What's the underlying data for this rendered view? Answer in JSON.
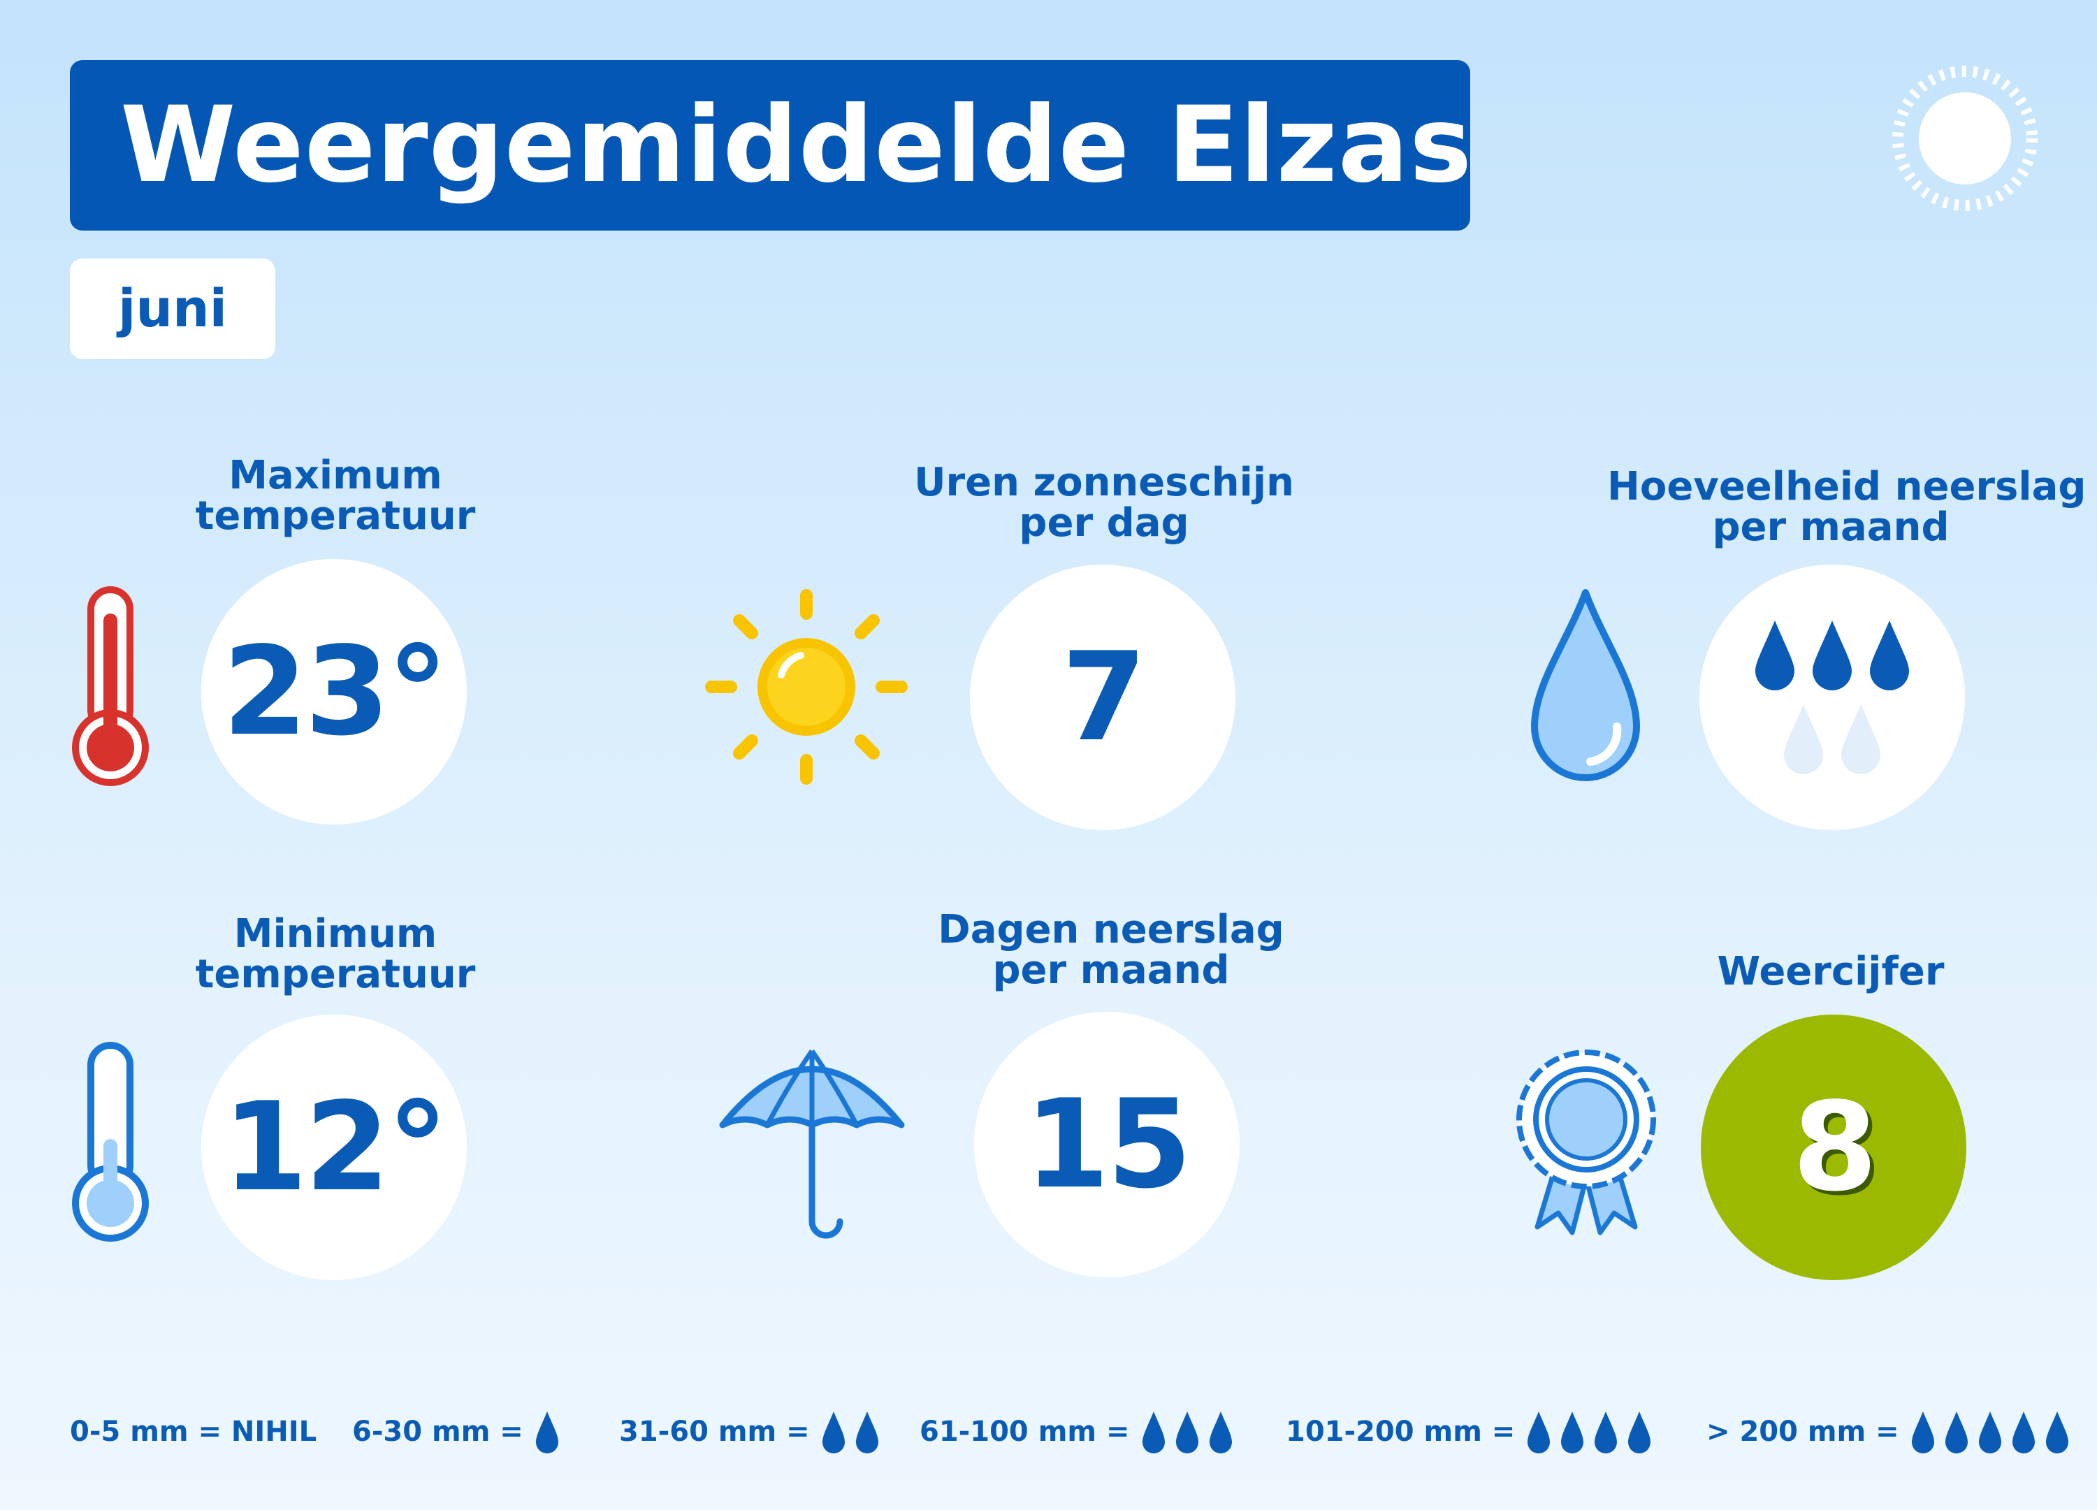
{
  "title": "Weergemiddelde Elzas",
  "month": "juni",
  "stats": {
    "max_temp": {
      "label_line1": "Maximum",
      "label_line2": "temperatuur",
      "value": "23°",
      "icon": "thermometer-hot-icon"
    },
    "min_temp": {
      "label_line1": "Minimum",
      "label_line2": "temperatuur",
      "value": "12°",
      "icon": "thermometer-cold-icon"
    },
    "sun_hours": {
      "label_line1": "Uren zonneschijn",
      "label_line2": "per dag",
      "value": "7",
      "icon": "sun-icon"
    },
    "rain_days": {
      "label_line1": "Dagen neerslag",
      "label_line2": "per maand",
      "value": "15",
      "icon": "umbrella-icon"
    },
    "precip_amount": {
      "label_line1": "Hoeveelheid neerslag",
      "label_line2": "per maand",
      "drops_filled": 3,
      "drops_total": 5,
      "icon": "water-drop-icon"
    },
    "weather_score": {
      "label": "Weercijfer",
      "value": "8",
      "icon": "rosette-icon"
    }
  },
  "legend": [
    {
      "text": "0-5 mm = NIHIL",
      "drops": 0
    },
    {
      "text": "6-30 mm =",
      "drops": 1
    },
    {
      "text": "31-60 mm =",
      "drops": 2
    },
    {
      "text": "61-100 mm =",
      "drops": 3
    },
    {
      "text": "101-200 mm =",
      "drops": 4
    },
    {
      "text": "> 200 mm =",
      "drops": 5
    }
  ],
  "colors": {
    "title_bg": "#0557b5",
    "text_blue": "#0a5bb5",
    "score_green": "#9ab900",
    "sun_yellow": "#f8c400",
    "thermo_red": "#d8322d",
    "light_blue": "#9fd0fb"
  }
}
